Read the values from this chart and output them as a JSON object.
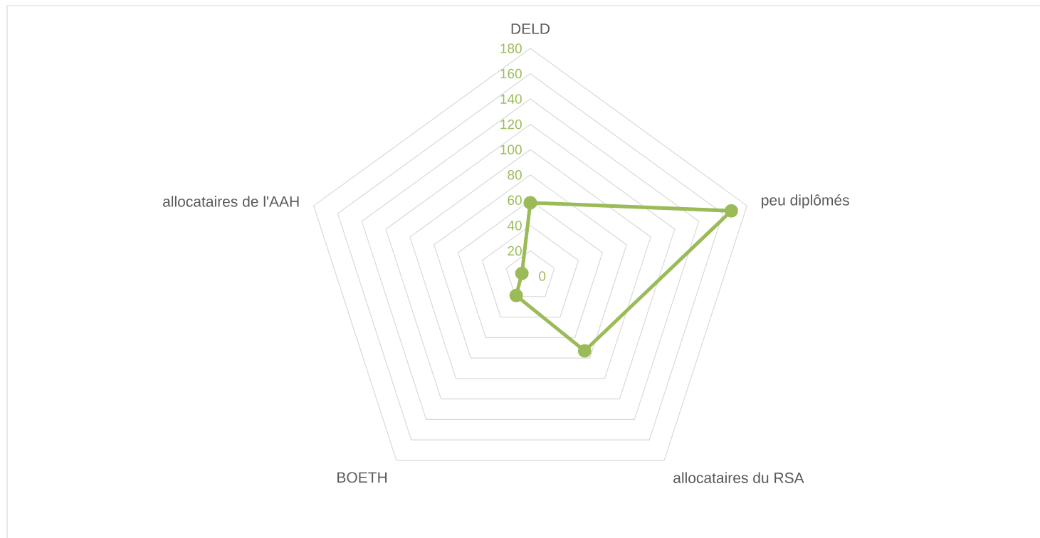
{
  "chart_data": {
    "type": "radar",
    "categories": [
      "DELD",
      "peu diplômés",
      "allocataires du RSA",
      "BOETH",
      "allocataires de l'AAH"
    ],
    "series": [
      {
        "color": "#9bbb59",
        "values": [
          58,
          167,
          73,
          19,
          7
        ]
      }
    ],
    "ylim": [
      0,
      180
    ],
    "yticks": [
      0,
      20,
      40,
      60,
      80,
      100,
      120,
      140,
      160,
      180
    ],
    "grid": true,
    "marker": "circle"
  }
}
